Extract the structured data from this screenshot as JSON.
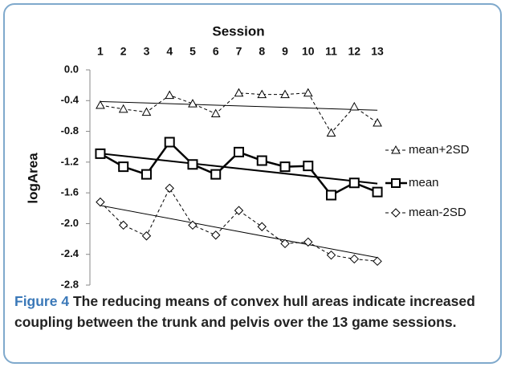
{
  "chart_data": {
    "type": "line",
    "title": "Session",
    "y_label": "logArea",
    "x": [
      1,
      2,
      3,
      4,
      5,
      6,
      7,
      8,
      9,
      10,
      11,
      12,
      13
    ],
    "xlim": [
      0.55,
      13.45
    ],
    "xticks": [
      1,
      2,
      3,
      4,
      5,
      6,
      7,
      8,
      9,
      10,
      11,
      12,
      13
    ],
    "ylim": [
      -2.8,
      0
    ],
    "yticks": [
      {
        "value": 0,
        "label": "0.0"
      },
      -0.4,
      -0.8,
      -1.2,
      -1.6,
      {
        "value": -2,
        "label": "-2.0"
      },
      -2.4,
      -2.8
    ],
    "trendline": true,
    "series": [
      {
        "name": "mean+2SD",
        "color": "#000000",
        "dash": true,
        "marker": "triangle",
        "values": [
          -0.46,
          -0.51,
          -0.55,
          -0.33,
          -0.44,
          -0.57,
          -0.3,
          -0.32,
          -0.32,
          -0.3,
          -0.82,
          -0.48,
          -0.69
        ]
      },
      {
        "name": "mean",
        "color": "#000000",
        "dash": false,
        "marker": "square",
        "values": [
          -1.09,
          -1.26,
          -1.36,
          -0.94,
          -1.23,
          -1.36,
          -1.07,
          -1.18,
          -1.26,
          -1.25,
          -1.63,
          -1.47,
          -1.59
        ]
      },
      {
        "name": "mean-2SD",
        "color": "#000000",
        "dash": true,
        "marker": "diamond",
        "values": [
          -1.72,
          -2.02,
          -2.16,
          -1.54,
          -2.02,
          -2.15,
          -1.83,
          -2.04,
          -2.26,
          -2.24,
          -2.41,
          -2.46,
          -2.49
        ]
      }
    ],
    "caption_label": "Figure 4",
    "caption": "The reducing means of convex hull areas indicate increased coupling between the trunk and pelvis over the 13 game sessions."
  }
}
